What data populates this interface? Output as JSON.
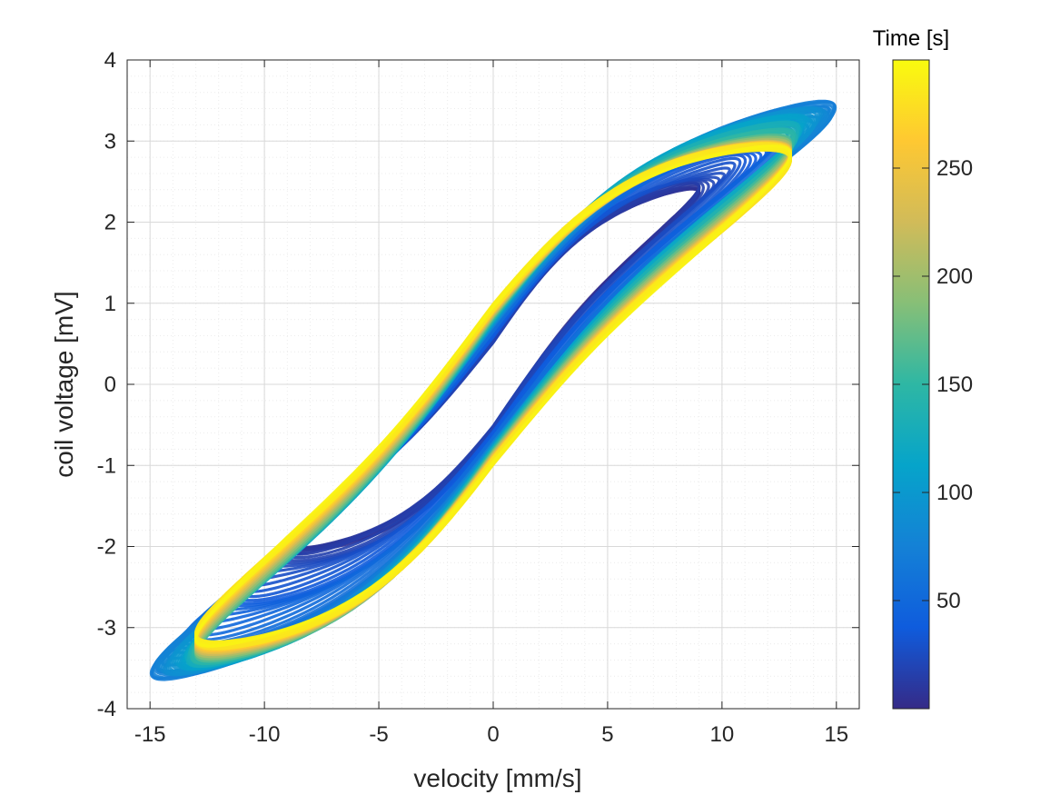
{
  "chart_data": {
    "type": "scatter",
    "title": "",
    "xlabel": "velocity [mm/s]",
    "ylabel": "coil voltage [mV]",
    "xlim": [
      -16,
      16
    ],
    "ylim": [
      -4,
      4
    ],
    "xticks": [
      -15,
      -10,
      -5,
      0,
      5,
      10,
      15
    ],
    "yticks": [
      -4,
      -3,
      -2,
      -1,
      0,
      1,
      2,
      3,
      4
    ],
    "xtick_labels": [
      "-15",
      "-10",
      "-5",
      "0",
      "5",
      "10",
      "15"
    ],
    "ytick_labels": [
      "-4",
      "-3",
      "-2",
      "-1",
      "0",
      "1",
      "2",
      "3",
      "4"
    ],
    "grid": true,
    "minor_grid": true,
    "colormap": "parula",
    "colorbar": {
      "title": "Time [s]",
      "range": [
        0,
        300
      ],
      "ticks": [
        50,
        100,
        150,
        200,
        250
      ],
      "tick_labels": [
        "50",
        "100",
        "150",
        "200",
        "250"
      ]
    },
    "loop_family": [
      {
        "time_s": 15,
        "x_amplitude": 9.0,
        "upper_peak_mV": 2.4,
        "lower_trough_mV": -2.0,
        "opening_mV": 0.55
      },
      {
        "time_s": 70,
        "x_amplitude": 15.0,
        "upper_peak_mV": 3.4,
        "lower_trough_mV": -3.55,
        "opening_mV": 0.75
      },
      {
        "time_s": 110,
        "x_amplitude": 13.5,
        "upper_peak_mV": 3.2,
        "lower_trough_mV": -3.4,
        "opening_mV": 0.8
      },
      {
        "time_s": 160,
        "x_amplitude": 13.0,
        "upper_peak_mV": 2.95,
        "lower_trough_mV": -3.3,
        "opening_mV": 0.85
      },
      {
        "time_s": 220,
        "x_amplitude": 13.0,
        "upper_peak_mV": 2.85,
        "lower_trough_mV": -3.2,
        "opening_mV": 0.9
      },
      {
        "time_s": 290,
        "x_amplitude": 13.0,
        "upper_peak_mV": 2.8,
        "lower_trough_mV": -3.1,
        "opening_mV": 0.95
      }
    ],
    "colors": {
      "axis": "#262626",
      "grid": "#d9d9d9",
      "parula_stops": [
        "#352a87",
        "#0f5cdd",
        "#1481d6",
        "#06a4ca",
        "#2eb7a4",
        "#87bf77",
        "#d1bb59",
        "#fec832",
        "#f9fb0e"
      ]
    }
  }
}
